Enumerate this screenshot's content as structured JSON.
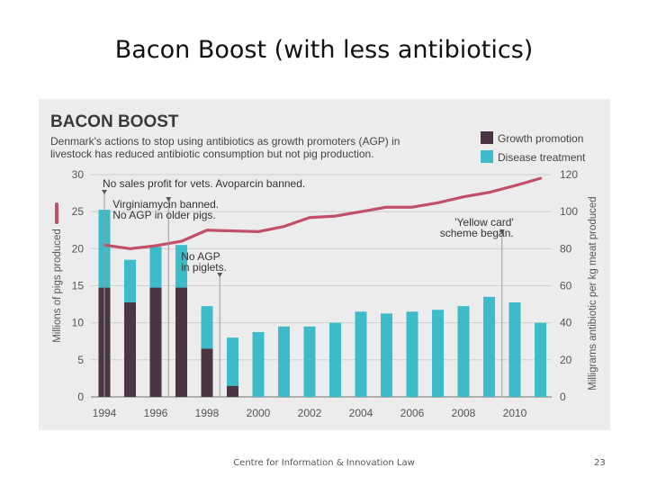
{
  "slide": {
    "title": "Bacon Boost (with less antibiotics)",
    "footer": "Centre for Information & Innovation Law",
    "page_number": "23"
  },
  "colors": {
    "growth_promotion": "#4a3545",
    "disease_treatment": "#3cbcc8",
    "pigs_line": "#c24f68",
    "figure_bg": "#ececec"
  },
  "chart_data": {
    "type": "bar",
    "title": "BACON BOOST",
    "subtitle_lines": [
      "Denmark's actions to stop using antibiotics as growth promoters (AGP) in",
      "livestock has reduced antibiotic consumption but not pig production."
    ],
    "x": [
      1994,
      1995,
      1996,
      1997,
      1998,
      1999,
      2000,
      2001,
      2002,
      2003,
      2004,
      2005,
      2006,
      2007,
      2008,
      2009,
      2010,
      2011
    ],
    "x_tick_labels": [
      "1994",
      "1996",
      "1998",
      "2000",
      "2002",
      "2004",
      "2006",
      "2008",
      "2010"
    ],
    "series": [
      {
        "name": "Growth promotion",
        "axis": "right",
        "values": [
          59,
          51,
          59,
          59,
          26,
          6,
          0,
          0,
          0,
          0,
          0,
          0,
          0,
          0,
          0,
          0,
          0,
          0
        ]
      },
      {
        "name": "Disease treatment",
        "axis": "right",
        "values": [
          42,
          23,
          22,
          23,
          23,
          26,
          35,
          38,
          38,
          40,
          46,
          45,
          46,
          47,
          49,
          54,
          51,
          40
        ]
      }
    ],
    "line_series": {
      "axis": "left",
      "values": [
        20.5,
        20.0,
        20.4,
        21.0,
        22.5,
        22.4,
        22.3,
        23.0,
        24.2,
        24.4,
        25.0,
        25.6,
        25.6,
        26.2,
        27.0,
        27.6,
        28.5,
        29.5
      ]
    },
    "yaxis_left": {
      "label": "Millions of pigs produced",
      "range": [
        0,
        30
      ],
      "ticks": [
        0,
        5,
        10,
        15,
        20,
        25,
        30
      ]
    },
    "yaxis_right": {
      "label": "Milligrams antibiotic per kg meat produced",
      "range": [
        0,
        120
      ],
      "ticks": [
        0,
        20,
        40,
        60,
        80,
        100,
        120
      ]
    },
    "legend_position": "top-right",
    "annotations": [
      {
        "year": 1995,
        "lines": [
          "No sales profit for vets. Avoparcin banned."
        ]
      },
      {
        "year": 1997,
        "lines": [
          "Virginiamycin banned.",
          "No AGP in older pigs."
        ]
      },
      {
        "year": 1999,
        "lines": [
          "No AGP",
          "in piglets."
        ]
      },
      {
        "year": 2010,
        "lines": [
          "'Yellow card'",
          "scheme began."
        ]
      }
    ]
  }
}
